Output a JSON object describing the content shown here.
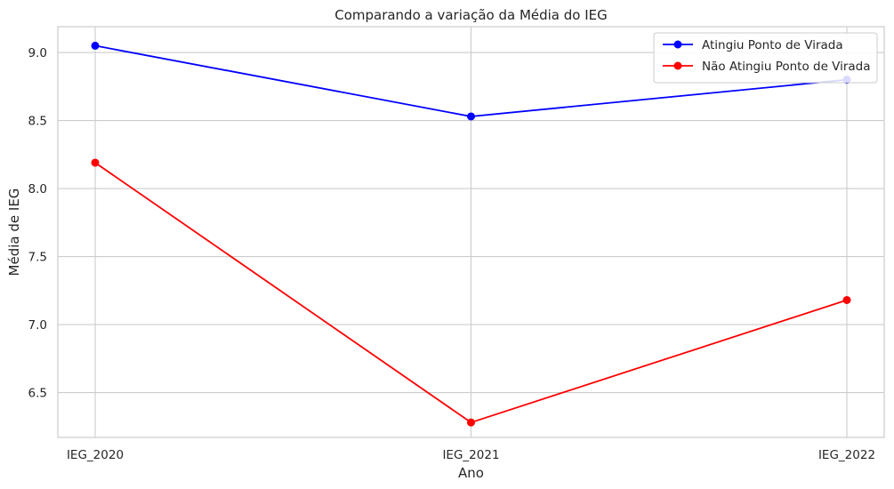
{
  "chart_data": {
    "type": "line",
    "title": "Comparando a variação da Média do IEG",
    "xlabel": "Ano",
    "ylabel": "Média de IEG",
    "categories": [
      "IEG_2020",
      "IEG_2021",
      "IEG_2022"
    ],
    "ylim": [
      6.17,
      9.19
    ],
    "yticks": [
      6.5,
      7.0,
      7.5,
      8.0,
      8.5,
      9.0
    ],
    "ytick_labels": [
      "6.5",
      "7.0",
      "7.5",
      "8.0",
      "8.5",
      "9.0"
    ],
    "grid": true,
    "legend_position": "top-right",
    "series": [
      {
        "name": "Atingiu Ponto de Virada",
        "color": "#0000ff",
        "marker": "circle",
        "values": [
          9.05,
          8.53,
          8.8
        ]
      },
      {
        "name": "Não Atingiu Ponto de Virada",
        "color": "#ff0000",
        "marker": "circle",
        "values": [
          8.19,
          6.28,
          7.18
        ]
      }
    ]
  }
}
